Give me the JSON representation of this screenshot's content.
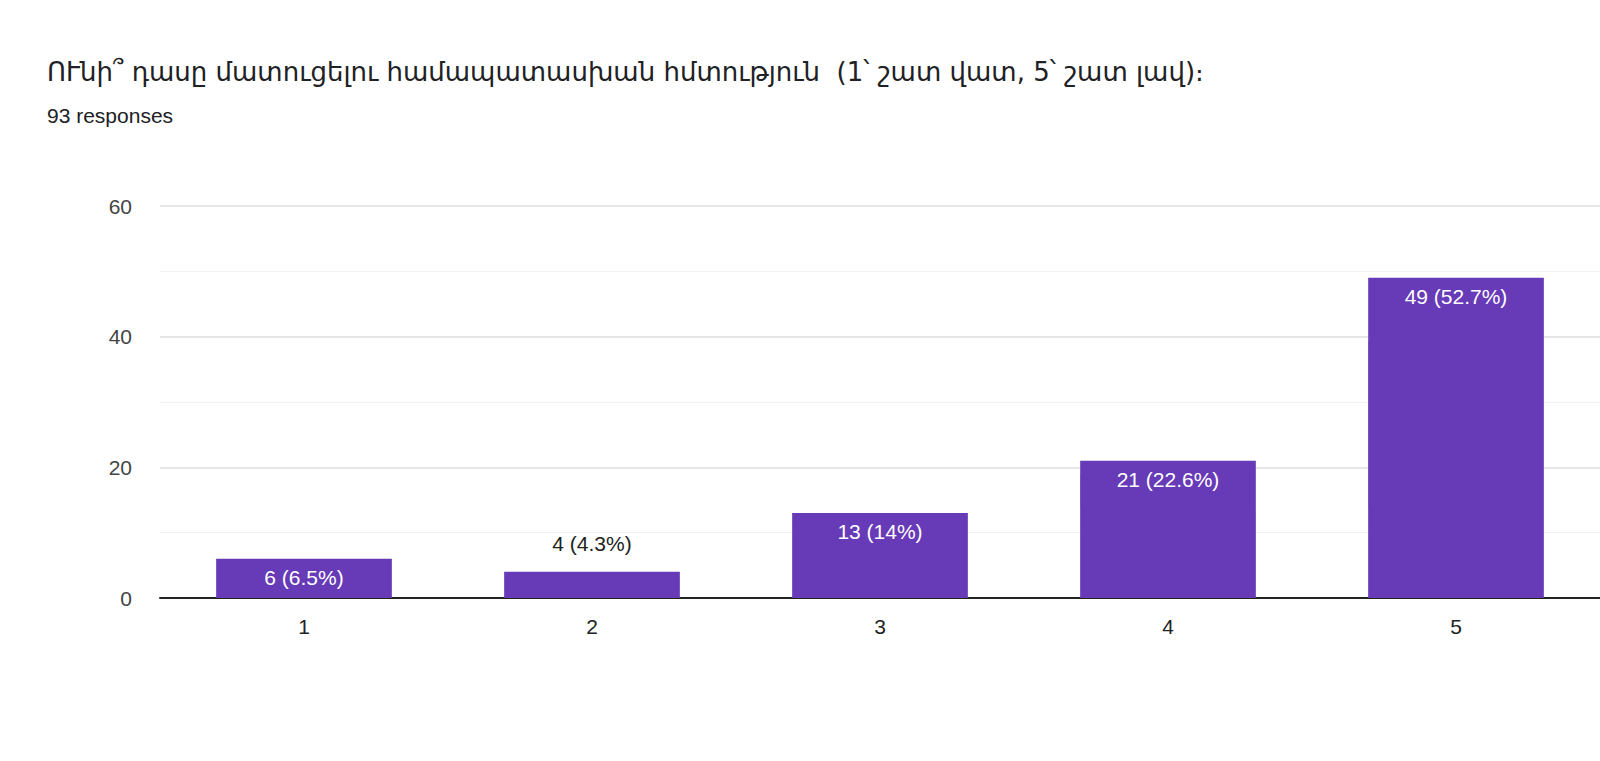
{
  "chart_data": {
    "type": "bar",
    "title": "ՈՒնի՞ դասը մատուցելու համապատասխան հմտություն  (1՝ շատ վատ, 5՝ շատ լավ)։",
    "subtitle": "93 responses",
    "categories": [
      "1",
      "2",
      "3",
      "4",
      "5"
    ],
    "values": [
      6,
      4,
      13,
      21,
      49
    ],
    "value_labels": [
      "6 (6.5%)",
      "4 (4.3%)",
      "13 (14%)",
      "21 (22.6%)",
      "49 (52.7%)"
    ],
    "color": "#673ab7",
    "ylim": [
      0,
      60
    ],
    "yticks": [
      0,
      20,
      40,
      60
    ],
    "grid": true,
    "data_labels": true
  }
}
